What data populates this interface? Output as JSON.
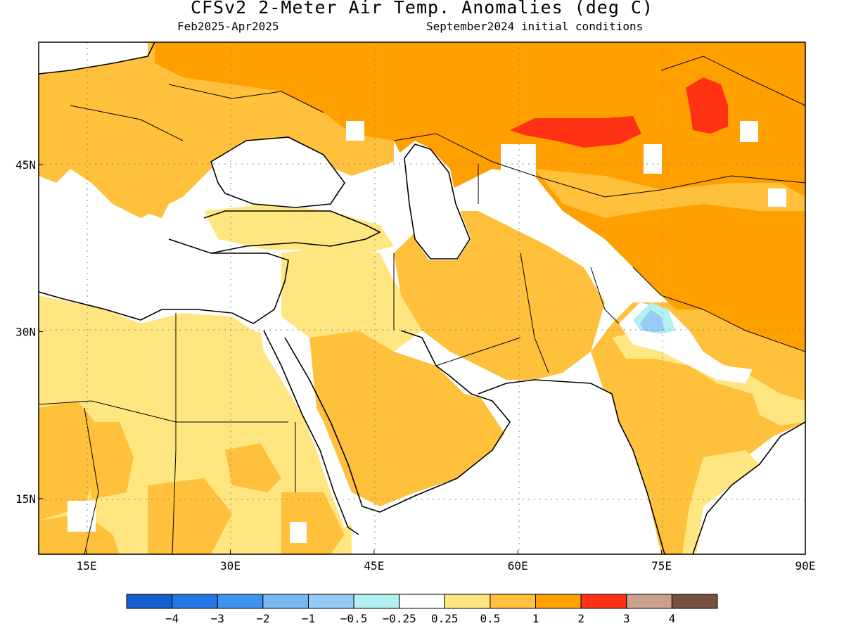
{
  "title": "CFSv2 2-Meter Air Temp. Anomalies (deg C)",
  "period": "Feb2025-Apr2025",
  "initial_conditions": "September2024 initial conditions",
  "lat_labels": [
    {
      "text": "45N",
      "lat": 45
    },
    {
      "text": "30N",
      "lat": 30
    },
    {
      "text": "15N",
      "lat": 15
    }
  ],
  "lon_labels": [
    {
      "text": "15E",
      "lon": 15
    },
    {
      "text": "30E",
      "lon": 30
    },
    {
      "text": "45E",
      "lon": 45
    },
    {
      "text": "60E",
      "lon": 60
    },
    {
      "text": "75E",
      "lon": 75
    },
    {
      "text": "90E",
      "lon": 90
    }
  ],
  "extent": {
    "lon_min": 10,
    "lon_max": 90,
    "lat_min": 10,
    "lat_max": 56
  },
  "colorbar": {
    "colors": [
      "#1560d0",
      "#2478e8",
      "#3c96f0",
      "#78b9f2",
      "#96cbf6",
      "#b4f0f0",
      "#ffffff",
      "#ffe680",
      "#ffc03c",
      "#ffa000",
      "#ff3214",
      "#c8a08c",
      "#785040"
    ],
    "labels": [
      "-4",
      "-3",
      "-2",
      "-1",
      "-0.5",
      "-0.25",
      "0.25",
      "0.5",
      "1",
      "2",
      "3",
      "4"
    ]
  },
  "regions": [
    {
      "name": "europe-anomaly-0.5-1",
      "color": "#ffc03c"
    },
    {
      "name": "north-africa-anomaly-0.25-0.5",
      "color": "#ffe680"
    },
    {
      "name": "arabia-anomaly-0.5-1",
      "color": "#ffc03c"
    },
    {
      "name": "central-asia-anomaly-1-2",
      "color": "#ffa000"
    },
    {
      "name": "kazakhstan-anomaly-2-3",
      "color": "#ff3214"
    },
    {
      "name": "india-anomaly-0.5-1",
      "color": "#ffc03c"
    },
    {
      "name": "pakistan-anomaly-below-0.25",
      "color": "#96cbf6"
    }
  ]
}
